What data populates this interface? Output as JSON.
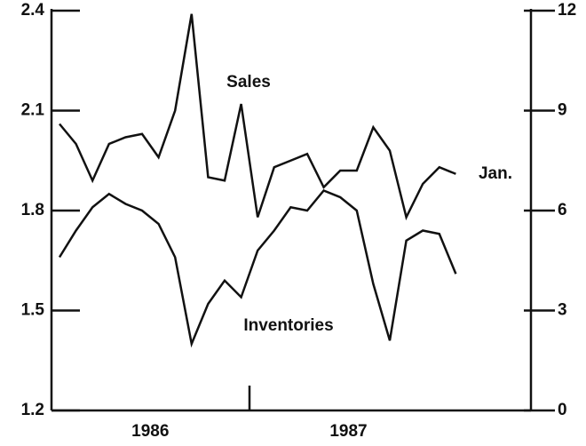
{
  "chart_data": {
    "type": "line",
    "categories": [
      null,
      null,
      null,
      null,
      null,
      null,
      null,
      null,
      null,
      null,
      null,
      null,
      null,
      null,
      null,
      null,
      null,
      null,
      null,
      null,
      null,
      null,
      null,
      null,
      null
    ],
    "x_group_labels": [
      "1986",
      "1987"
    ],
    "series": [
      {
        "name": "Sales",
        "color": "#111111",
        "axis": "y2",
        "values": [
          8.6,
          8.0,
          6.9,
          8.0,
          8.2,
          8.3,
          7.6,
          9.0,
          11.9,
          7.0,
          6.9,
          9.2,
          5.8,
          7.3,
          7.5,
          7.7,
          6.7,
          7.2,
          7.2,
          8.5,
          7.8,
          5.8,
          6.8,
          7.3,
          7.1
        ]
      },
      {
        "name": "Inventories",
        "color": "#111111",
        "values": [
          1.66,
          1.74,
          1.81,
          1.85,
          1.82,
          1.8,
          1.76,
          1.66,
          1.4,
          1.52,
          1.59,
          1.54,
          1.68,
          1.74,
          1.81,
          1.8,
          1.86,
          1.84,
          1.8,
          1.58,
          1.41,
          1.71,
          1.74,
          1.73,
          1.61
        ]
      }
    ],
    "annotations": [
      "Jan."
    ],
    "ylim": [
      1.2,
      2.4
    ],
    "yticks": [
      {
        "value": 1.2,
        "label": "1.2"
      },
      {
        "value": 1.5,
        "label": "1.5"
      },
      {
        "value": 1.8,
        "label": "1.8"
      },
      {
        "value": 2.1,
        "label": "2.1"
      },
      {
        "value": 2.4,
        "label": "2.4"
      }
    ],
    "y2lim": [
      0,
      12
    ],
    "y2ticks": [
      0,
      3,
      6,
      9,
      12
    ]
  }
}
